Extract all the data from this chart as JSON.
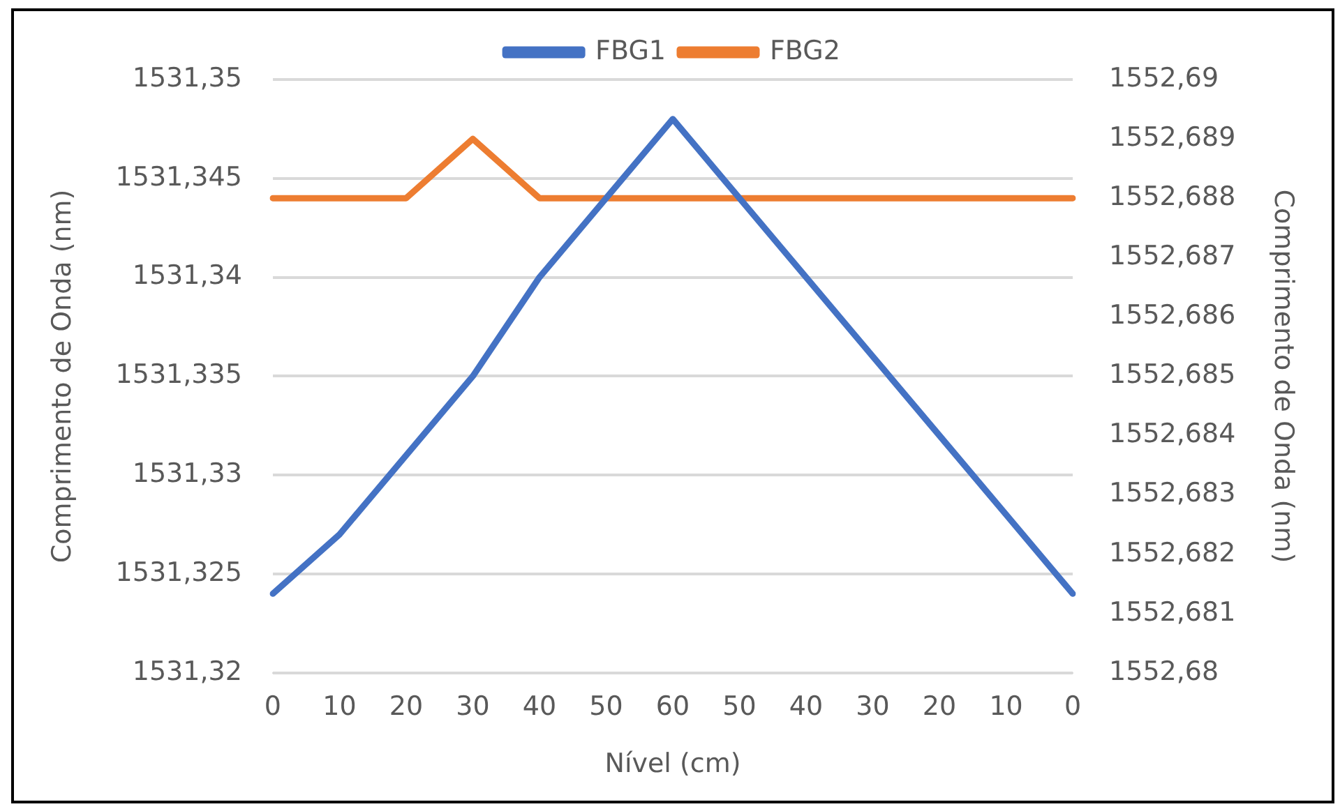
{
  "chart_data": {
    "type": "line",
    "xlabel": "Nível (cm)",
    "ylabel": "Comprimento de Onda (nm)",
    "y2label": "Comprimento de Onda (nm)",
    "categories": [
      "0",
      "10",
      "20",
      "30",
      "40",
      "50",
      "60",
      "50",
      "40",
      "30",
      "20",
      "10",
      "0"
    ],
    "series": [
      {
        "name": "FBG1",
        "color": "#4472c4",
        "values": [
          1531.324,
          1531.327,
          1531.331,
          1531.335,
          1531.34,
          1531.344,
          1531.348,
          1531.344,
          1531.34,
          1531.336,
          1531.332,
          1531.328,
          1531.324
        ]
      },
      {
        "name": "FBG2",
        "color": "#ed7d31",
        "axis": "y2",
        "values": [
          1552.688,
          1552.688,
          1552.688,
          1552.689,
          1552.688,
          1552.688,
          1552.688,
          1552.688,
          1552.688,
          1552.688,
          1552.688,
          1552.688,
          1552.688
        ]
      }
    ],
    "ylim": [
      1531.32,
      1531.35
    ],
    "yticks": [
      {
        "value": 1531.32,
        "label": "1531,32"
      },
      {
        "value": 1531.325,
        "label": "1531,325"
      },
      {
        "value": 1531.33,
        "label": "1531,33"
      },
      {
        "value": 1531.335,
        "label": "1531,335"
      },
      {
        "value": 1531.34,
        "label": "1531,34"
      },
      {
        "value": 1531.345,
        "label": "1531,345"
      },
      {
        "value": 1531.35,
        "label": "1531,35"
      }
    ],
    "y2lim": [
      1552.68,
      1552.69
    ],
    "y2ticks": [
      {
        "value": 1552.68,
        "label": "1552,68"
      },
      {
        "value": 1552.681,
        "label": "1552,681"
      },
      {
        "value": 1552.682,
        "label": "1552,682"
      },
      {
        "value": 1552.683,
        "label": "1552,683"
      },
      {
        "value": 1552.684,
        "label": "1552,684"
      },
      {
        "value": 1552.685,
        "label": "1552,685"
      },
      {
        "value": 1552.686,
        "label": "1552,686"
      },
      {
        "value": 1552.687,
        "label": "1552,687"
      },
      {
        "value": 1552.688,
        "label": "1552,688"
      },
      {
        "value": 1552.689,
        "label": "1552,689"
      },
      {
        "value": 1552.69,
        "label": "1552,69"
      }
    ],
    "grid": "y",
    "legend": "top",
    "marker": "none",
    "line_style": "solid"
  }
}
